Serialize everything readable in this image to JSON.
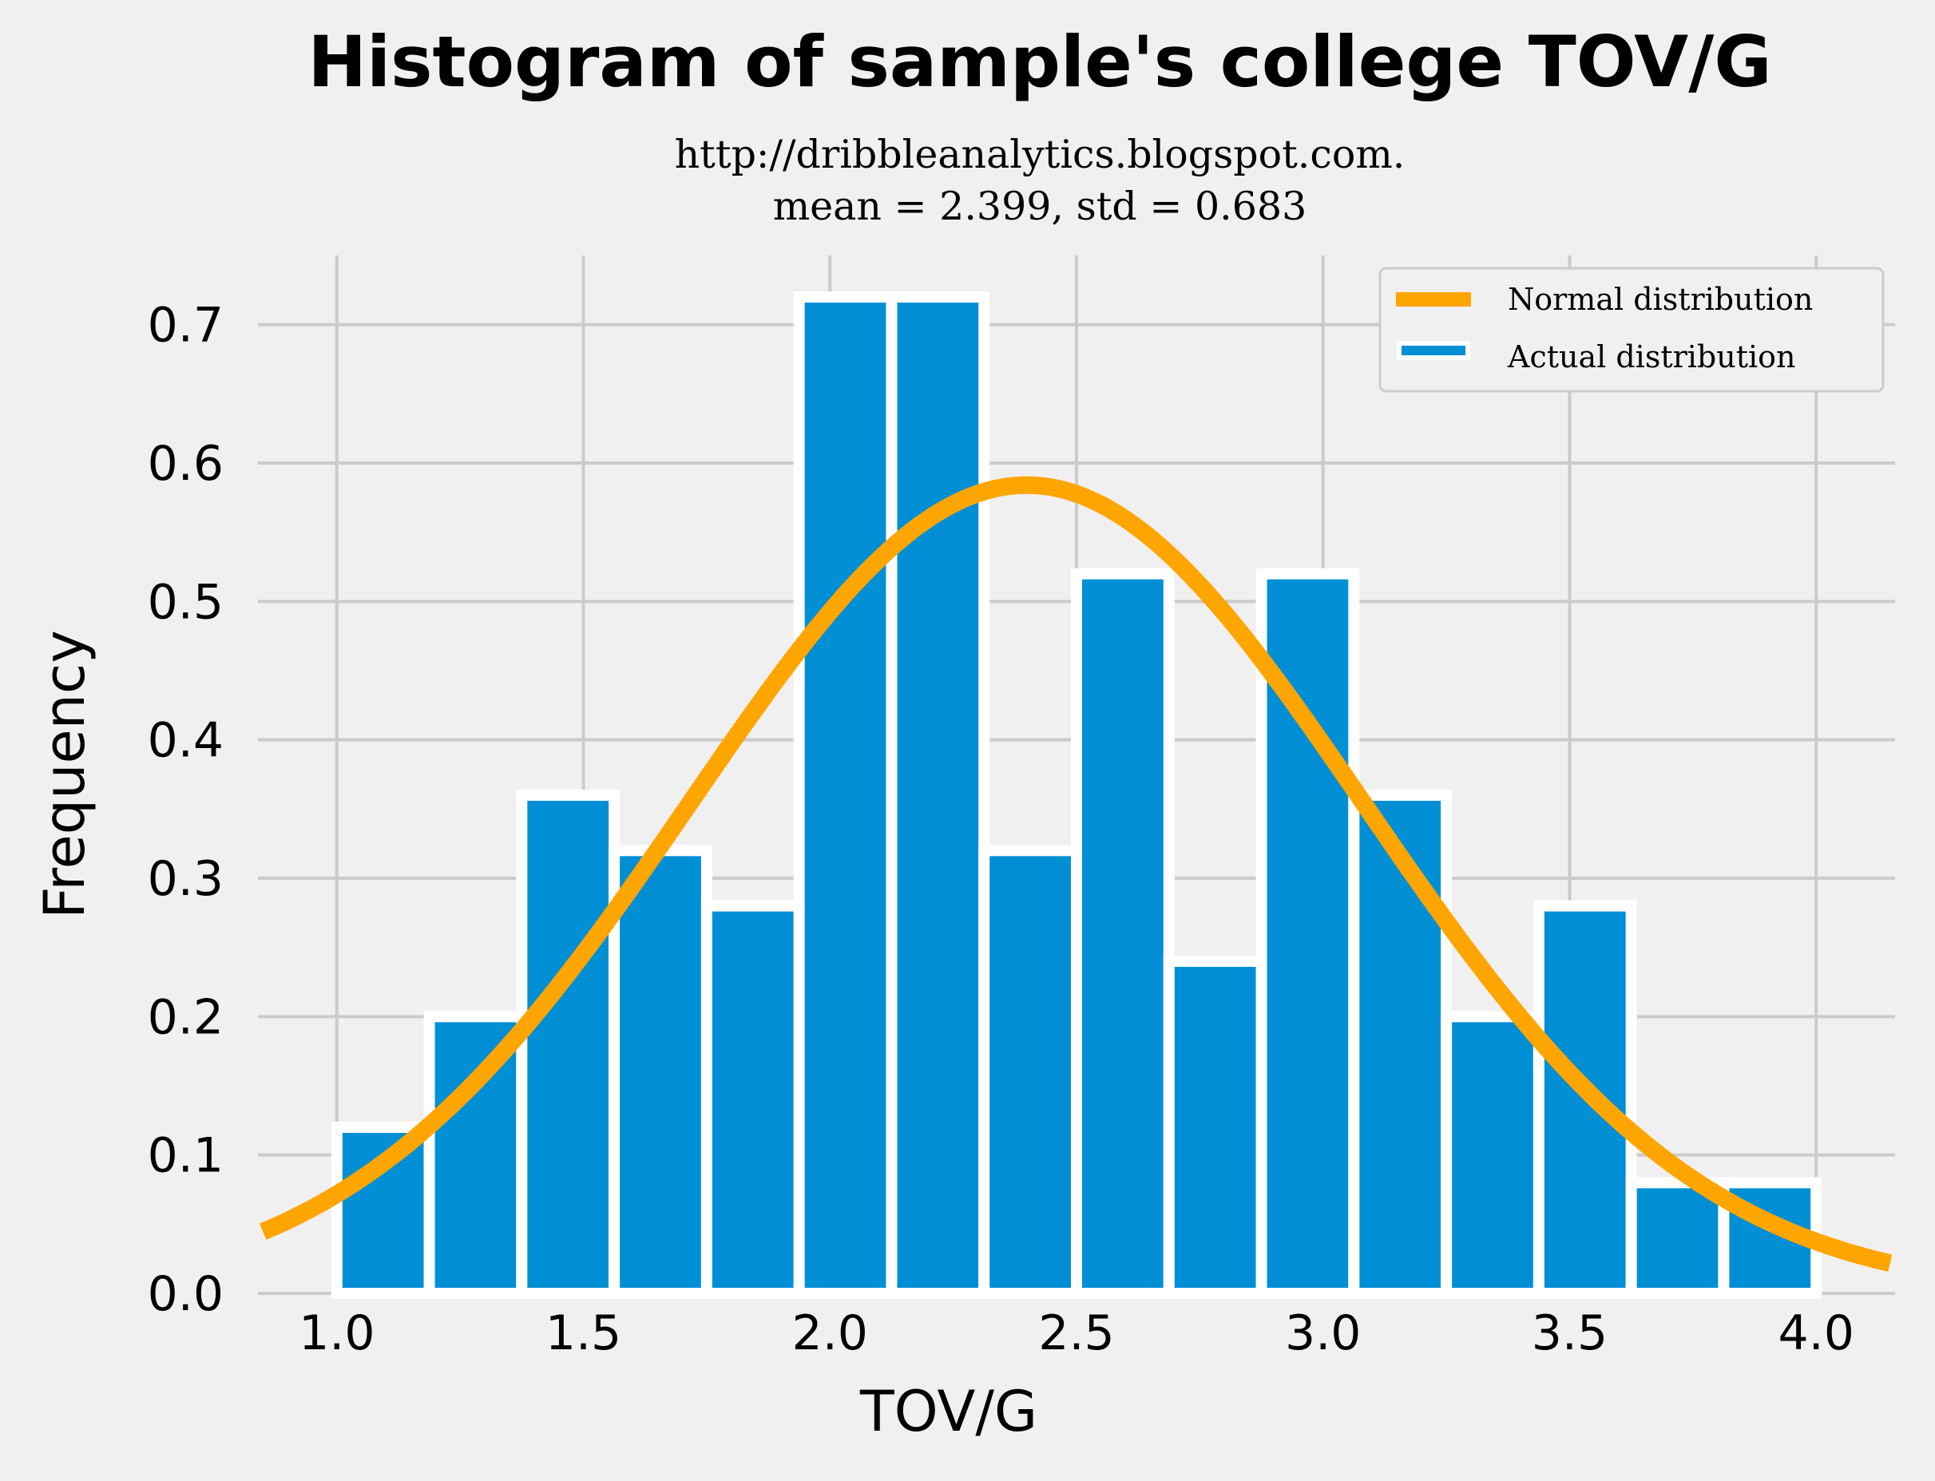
{
  "chart_data": {
    "type": "bar",
    "title": "Histogram of sample's college TOV/G",
    "subtitle_lines": [
      "http://dribbleanalytics.blogspot.com.",
      "mean = 2.399, std = 0.683"
    ],
    "xlabel": "TOV/G",
    "ylabel": "Frequency",
    "xlim": [
      0.84,
      4.16
    ],
    "ylim": [
      0,
      0.75
    ],
    "xticks": [
      "1.0",
      "1.5",
      "2.0",
      "2.5",
      "3.0",
      "3.5",
      "4.0"
    ],
    "yticks": [
      "0.0",
      "0.1",
      "0.2",
      "0.3",
      "0.4",
      "0.5",
      "0.6",
      "0.7"
    ],
    "grid": true,
    "legend_position": "top-right",
    "bin_width": 0.1875,
    "bins": [
      {
        "x0": 1.0,
        "value": 0.12
      },
      {
        "x0": 1.1875,
        "value": 0.2
      },
      {
        "x0": 1.375,
        "value": 0.36
      },
      {
        "x0": 1.5625,
        "value": 0.32
      },
      {
        "x0": 1.75,
        "value": 0.28
      },
      {
        "x0": 1.9375,
        "value": 0.72
      },
      {
        "x0": 2.125,
        "value": 0.72
      },
      {
        "x0": 2.3125,
        "value": 0.32
      },
      {
        "x0": 2.5,
        "value": 0.52
      },
      {
        "x0": 2.6875,
        "value": 0.24
      },
      {
        "x0": 2.875,
        "value": 0.52
      },
      {
        "x0": 3.0625,
        "value": 0.36
      },
      {
        "x0": 3.25,
        "value": 0.2
      },
      {
        "x0": 3.4375,
        "value": 0.28
      },
      {
        "x0": 3.625,
        "value": 0.08
      },
      {
        "x0": 3.8125,
        "value": 0.08
      }
    ],
    "series": [
      {
        "name": "Normal distribution",
        "type": "line",
        "color": "#ffa500",
        "mean": 2.399,
        "std": 0.683,
        "x_range": [
          0.85,
          4.15
        ]
      },
      {
        "name": "Actual distribution",
        "type": "bar",
        "color": "#008fd5"
      }
    ]
  }
}
